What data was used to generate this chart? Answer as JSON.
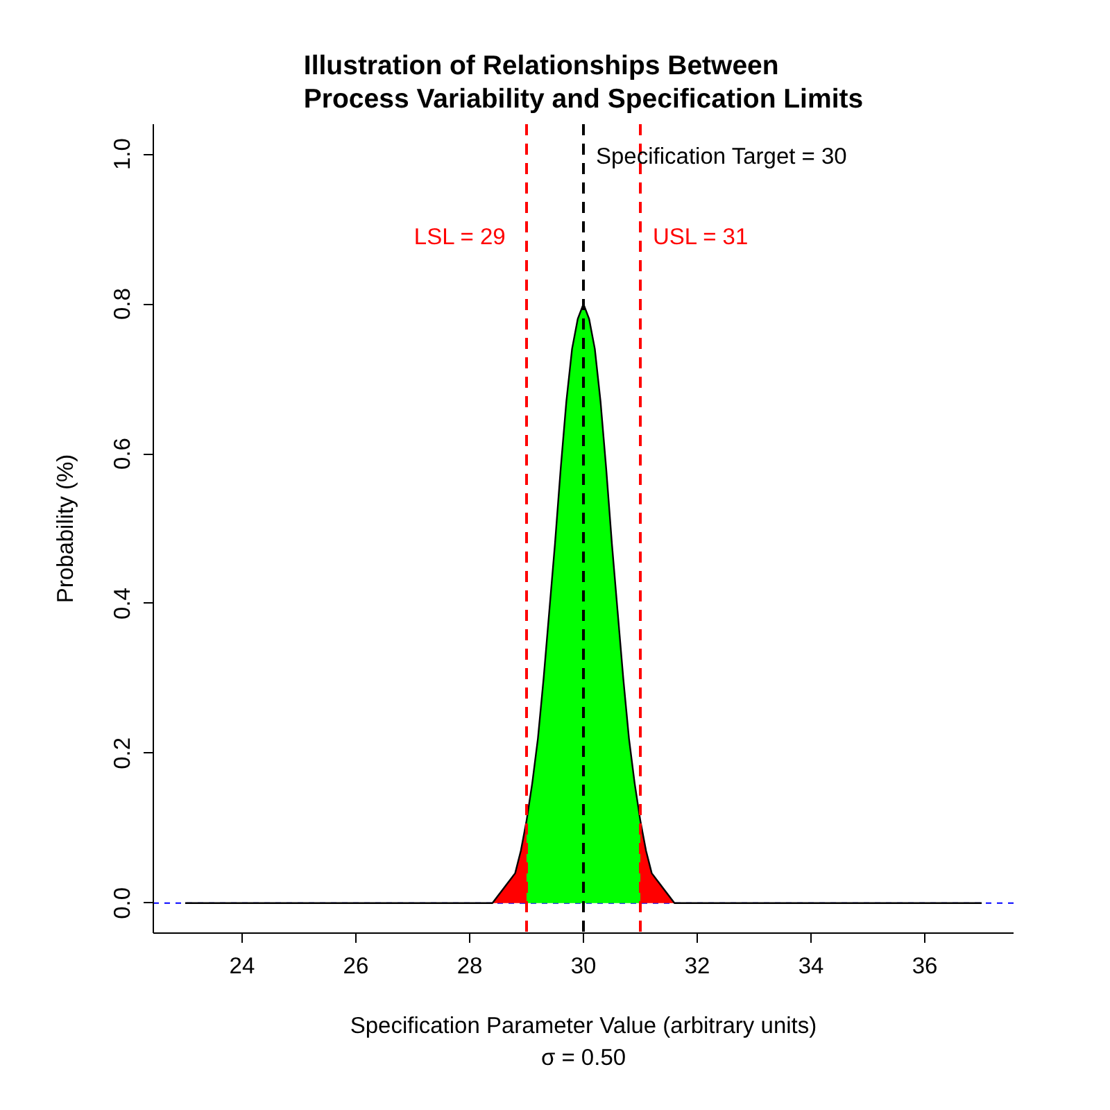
{
  "chart_data": {
    "type": "area",
    "title": "Illustration of Relationships Between\nProcess Variability and Specification Limits",
    "xlabel": "Specification Parameter Value (arbitrary units)",
    "ylabel": "Probability (%)",
    "annotations": [
      "σ = 0.50"
    ],
    "xlim": [
      22.44,
      37.56
    ],
    "ylim": [
      -0.04,
      1.04
    ],
    "xticks": [
      24,
      26,
      28,
      30,
      32,
      34,
      36
    ],
    "yticks": [
      {
        "value": 0,
        "label": "0.0"
      },
      {
        "value": 0.2,
        "label": "0.2"
      },
      {
        "value": 0.4,
        "label": "0.4"
      },
      {
        "value": 0.6,
        "label": "0.6"
      },
      {
        "value": 0.8,
        "label": "0.8"
      },
      {
        "value": 1,
        "label": "1.0"
      }
    ],
    "grid": false,
    "series": [
      {
        "color": "#ff0000",
        "x": [
          28,
          28.4,
          28.5,
          28.6,
          28.7,
          28.8,
          28.9,
          29
        ],
        "values": [
          0,
          0,
          0.01,
          0.02,
          0.03,
          0.04,
          0.07,
          0.11
        ]
      },
      {
        "color": "#00ff00",
        "x": [
          29,
          29.1,
          29.2,
          29.3,
          29.4,
          29.5,
          29.6,
          29.7,
          29.8,
          29.9,
          30,
          30.1,
          30.2,
          30.3,
          30.4,
          30.5,
          30.6,
          30.7,
          30.8,
          30.9,
          31
        ],
        "values": [
          0.11,
          0.16,
          0.22,
          0.3,
          0.39,
          0.48,
          0.58,
          0.67,
          0.74,
          0.78,
          0.8,
          0.78,
          0.74,
          0.67,
          0.58,
          0.48,
          0.39,
          0.3,
          0.22,
          0.16,
          0.11
        ]
      },
      {
        "color": "#ff0000",
        "x": [
          31,
          31.1,
          31.2,
          31.3,
          31.4,
          31.5,
          31.6,
          32
        ],
        "values": [
          0.11,
          0.07,
          0.04,
          0.03,
          0.02,
          0.01,
          0,
          0
        ]
      },
      {
        "type": "line",
        "color": "#000000",
        "line_style": "solid",
        "x": [
          23,
          28,
          28.4,
          28.5,
          28.6,
          28.7,
          28.8,
          28.9,
          29,
          29.1,
          29.2,
          29.3,
          29.4,
          29.5,
          29.6,
          29.7,
          29.8,
          29.9,
          30,
          30.1,
          30.2,
          30.3,
          30.4,
          30.5,
          30.6,
          30.7,
          30.8,
          30.9,
          31,
          31.1,
          31.2,
          31.3,
          31.4,
          31.5,
          31.6,
          32,
          37
        ],
        "values": [
          0,
          0,
          0,
          0.01,
          0.02,
          0.03,
          0.04,
          0.07,
          0.11,
          0.16,
          0.22,
          0.3,
          0.39,
          0.48,
          0.58,
          0.67,
          0.74,
          0.78,
          0.8,
          0.78,
          0.74,
          0.67,
          0.58,
          0.48,
          0.39,
          0.3,
          0.22,
          0.16,
          0.11,
          0.07,
          0.04,
          0.03,
          0.02,
          0.01,
          0,
          0,
          0
        ]
      }
    ],
    "ref_lines": [
      {
        "axis": "x",
        "value": 30,
        "label": "Specification Target = 30",
        "color": "#000000",
        "line_style": "dashed"
      },
      {
        "axis": "x",
        "value": 29,
        "label": "LSL =  29",
        "color": "#ff0000",
        "line_style": "dashed"
      },
      {
        "axis": "x",
        "value": 31,
        "label": "USL =  31",
        "color": "#ff0000",
        "line_style": "dashed"
      },
      {
        "axis": "y",
        "value": 0,
        "color": "#0000ff",
        "line_style": "dashed"
      }
    ]
  }
}
